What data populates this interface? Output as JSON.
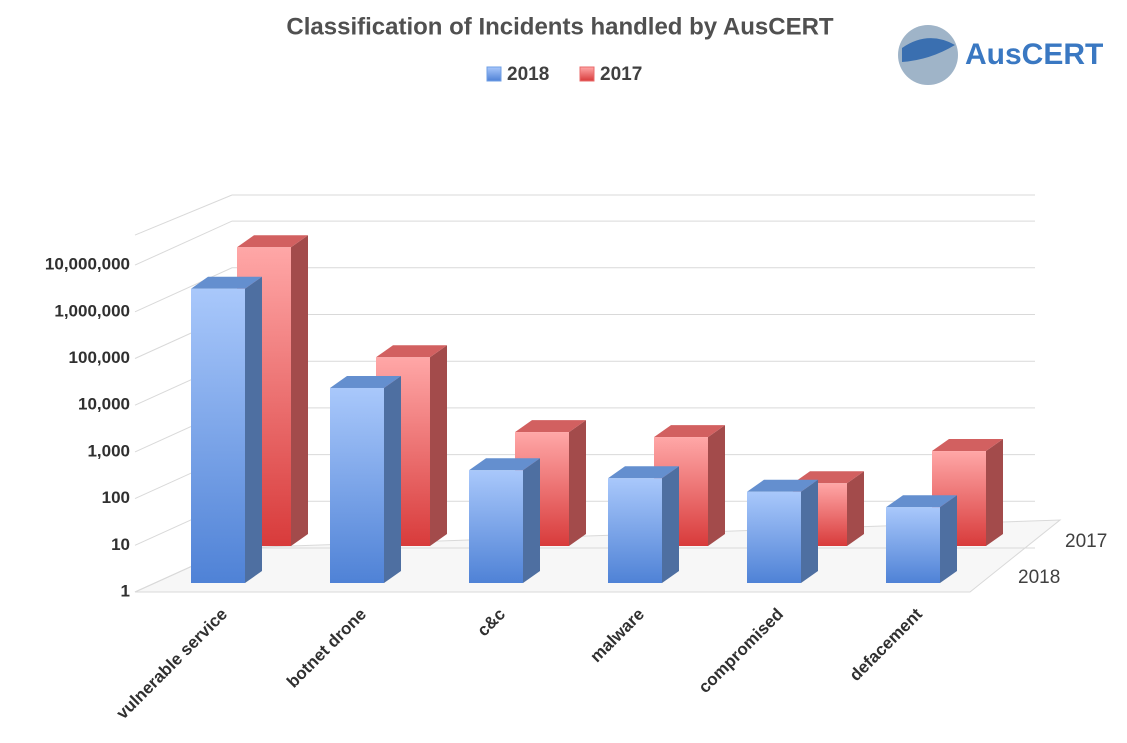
{
  "chart_data": {
    "type": "bar3d",
    "title": "Classification of Incidents handled by AusCERT",
    "logo": "AusCERT",
    "categories": [
      "vulnerable service",
      "botnet drone",
      "c&c",
      "malware",
      "compromised",
      "defacement"
    ],
    "series": [
      {
        "name": "2018",
        "color": "#6f9fe6",
        "values": [
          2000000,
          15000,
          260,
          175,
          90,
          42
        ]
      },
      {
        "name": "2017",
        "color": "#e96b6b",
        "values": [
          2500000,
          11000,
          275,
          215,
          22,
          108
        ]
      }
    ],
    "log_scale": true,
    "ylim": [
      1,
      10000000
    ],
    "yticks": [
      1,
      10,
      100,
      {
        "value": 1000,
        "label": "1,000"
      },
      {
        "value": 10000,
        "label": "10,000"
      },
      {
        "value": 100000,
        "label": "100,000"
      },
      {
        "value": 1000000,
        "label": "1,000,000"
      },
      {
        "value": 10000000,
        "label": "10,000,000"
      }
    ],
    "grid": true,
    "legend": "top"
  }
}
